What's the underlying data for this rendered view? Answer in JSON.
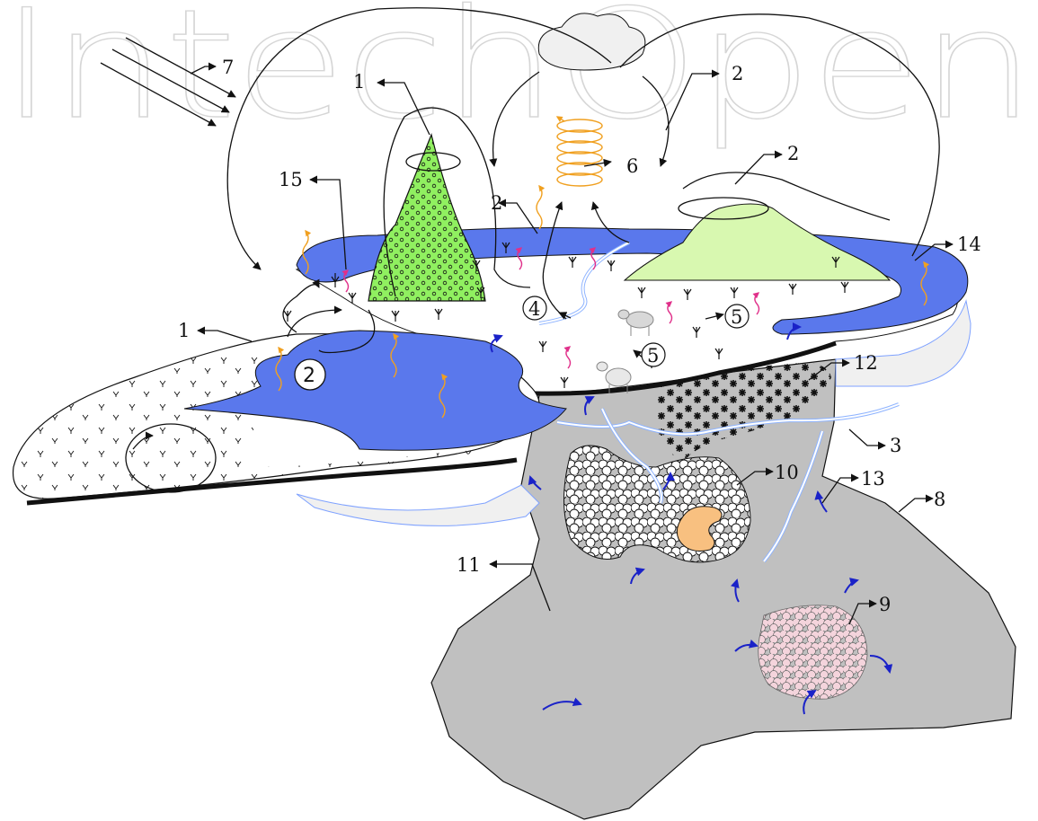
{
  "watermark": "IntechOpen",
  "labels": {
    "n1_top": "1",
    "n1_left": "1",
    "n2_top": "2",
    "n2_right": "2",
    "n2_mid": "2",
    "n2_circle": "2",
    "n3": "3",
    "n4": "4",
    "n5_a": "5",
    "n5_b": "5",
    "n6": "6",
    "n7": "7",
    "n8": "8",
    "n9": "9",
    "n10": "10",
    "n11": "11",
    "n12": "12",
    "n13": "13",
    "n14": "14",
    "n15": "15"
  },
  "colors": {
    "water": "#5a78ec",
    "rock": "#c0c0c0",
    "hill_green": "#90f060",
    "hill_light": "#d8f8b0",
    "arrow_blue": "#1a22c8",
    "radiation": "#f0a020",
    "emission": "#e0308a",
    "pink_cluster": "#f4d4dc",
    "orange_core": "#f8c080"
  }
}
